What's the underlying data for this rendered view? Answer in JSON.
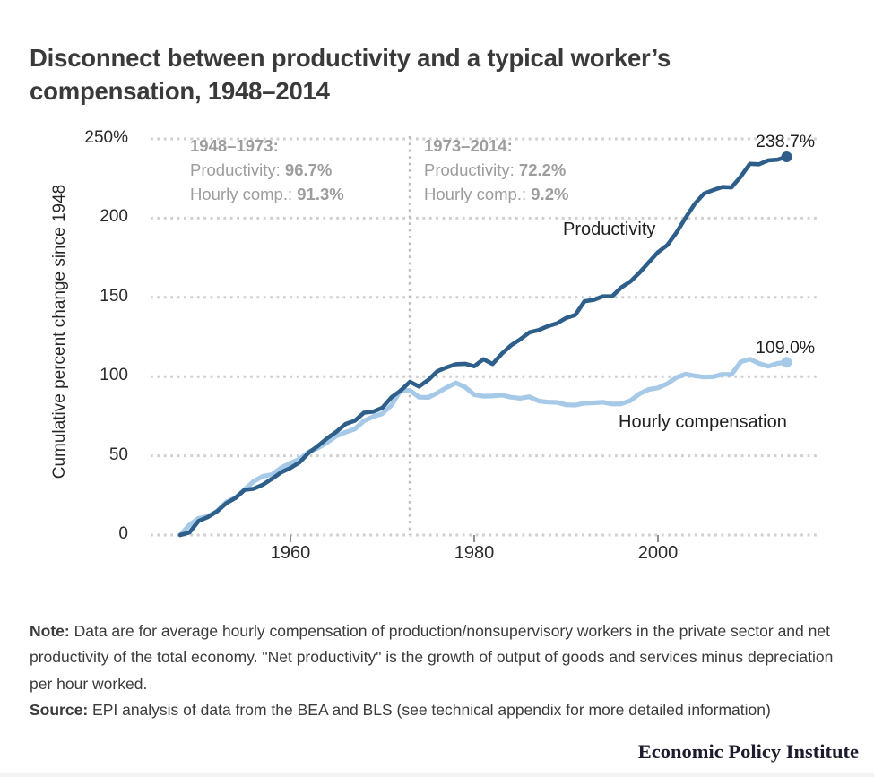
{
  "title": "Disconnect between productivity and a typical worker’s compensation, 1948–2014",
  "axis": {
    "yticks": [
      "250%",
      "200",
      "150",
      "100",
      "50",
      "0"
    ],
    "xticks": [
      "1960",
      "1980",
      "2000"
    ]
  },
  "annotations": [
    {
      "title": "1948–1973:",
      "lines": [
        {
          "label": "Productivity: ",
          "value": "96.7%"
        },
        {
          "label": "Hourly comp.: ",
          "value": "91.3%"
        }
      ]
    },
    {
      "title": "1973–2014:",
      "lines": [
        {
          "label": "Productivity: ",
          "value": "72.2%"
        },
        {
          "label": "Hourly comp.: ",
          "value": "9.2%"
        }
      ]
    }
  ],
  "note": {
    "label": "Note:",
    "text": " Data are for average hourly compensation of production/nonsupervisory workers in the private sector and net productivity of the total economy. \"Net productivity\" is the growth of output of goods and services minus depreciation per hour worked."
  },
  "source": {
    "label": "Source:",
    "text": " EPI analysis of data from the BEA and BLS (see technical appendix for more detailed information)"
  },
  "logo_text": "Economic Policy Institute",
  "chart_data": {
    "type": "line",
    "title": "Disconnect between productivity and a typical worker’s compensation, 1948–2014",
    "ylabel": "Cumulative percent change since 1948",
    "xlabel": "",
    "x_range": [
      1948,
      2014
    ],
    "y_range": [
      0,
      250
    ],
    "grid_values": [
      0,
      50,
      100,
      150,
      200,
      250
    ],
    "xticks": [
      1960,
      1980,
      2000
    ],
    "grid_on": true,
    "grid_color": "#cfcfcf",
    "reference_line_x": 1973,
    "reference_line_color": "#bdbdbd",
    "legend_position": "inline-labels",
    "series": [
      {
        "name": "Productivity",
        "color": "#2d5f8a",
        "stroke_width": 4.6,
        "end_label": "238.7%",
        "end_value": 238.7,
        "values": [
          0.0,
          1.6,
          8.8,
          11.3,
          14.9,
          20.0,
          23.3,
          28.5,
          29.2,
          31.8,
          35.5,
          39.6,
          42.3,
          45.9,
          52.0,
          56.3,
          61.1,
          65.2,
          70.1,
          72.1,
          77.2,
          77.8,
          80.3,
          87.0,
          91.2,
          96.7,
          93.7,
          97.9,
          103.4,
          105.8,
          107.8,
          108.1,
          106.5,
          111.0,
          107.9,
          114.4,
          119.7,
          123.5,
          127.9,
          129.3,
          131.8,
          133.6,
          137.0,
          138.9,
          147.5,
          148.4,
          150.6,
          150.6,
          156.2,
          160.0,
          165.6,
          172.1,
          178.5,
          182.9,
          190.7,
          200.2,
          209.0,
          215.5,
          217.7,
          219.6,
          219.4,
          226.2,
          234.3,
          234.0,
          236.5,
          236.9,
          238.7
        ]
      },
      {
        "name": "Hourly compensation",
        "color": "#a7c9e8",
        "stroke_width": 5.2,
        "end_label": "109.0%",
        "end_value": 109.0,
        "values": [
          0.0,
          6.3,
          10.5,
          11.7,
          15.0,
          20.8,
          23.5,
          28.7,
          33.9,
          37.1,
          38.2,
          42.5,
          45.4,
          48.0,
          52.5,
          55.0,
          58.5,
          62.5,
          64.9,
          66.9,
          72.0,
          74.7,
          76.6,
          82.0,
          91.3,
          91.3,
          87.0,
          86.8,
          89.7,
          93.1,
          96.0,
          93.4,
          88.6,
          87.6,
          87.8,
          88.3,
          87.0,
          86.3,
          87.3,
          84.6,
          83.9,
          83.7,
          82.2,
          82.0,
          83.2,
          83.4,
          83.8,
          82.7,
          82.8,
          84.8,
          89.2,
          91.9,
          92.9,
          95.5,
          99.4,
          101.6,
          100.5,
          99.7,
          99.9,
          101.4,
          101.3,
          109.3,
          111.0,
          108.3,
          106.5,
          108.3,
          109.0
        ]
      }
    ]
  }
}
